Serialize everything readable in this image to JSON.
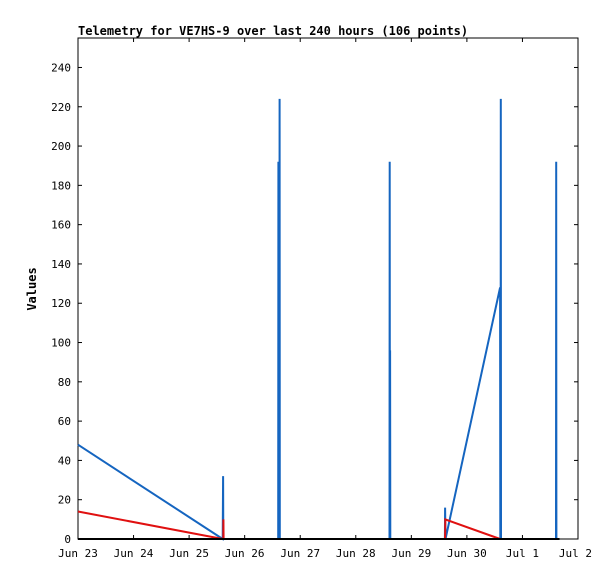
{
  "chart_data": {
    "type": "line",
    "title": "Telemetry for VE7HS-9 over last 240 hours (106 points)",
    "xlabel": "",
    "ylabel": "Values",
    "xlim": [
      "2025-06-23",
      "2025-07-02"
    ],
    "ylim": [
      0,
      255
    ],
    "x_ticks": [
      "Jun 23",
      "Jun 24",
      "Jun 25",
      "Jun 26",
      "Jun 27",
      "Jun 28",
      "Jun 29",
      "Jun 30",
      "Jul 1",
      "Jul 2"
    ],
    "y_ticks": [
      0,
      20,
      40,
      60,
      80,
      100,
      120,
      140,
      160,
      180,
      200,
      220,
      240
    ],
    "grid": false,
    "series": [
      {
        "color": "#1565c0",
        "points": [
          {
            "x": "2025-06-23T00:00",
            "y": 48
          },
          {
            "x": "2025-06-25T14:30",
            "y": 0
          },
          {
            "x": "2025-06-25T14:40",
            "y": 32
          },
          {
            "x": "2025-06-25T14:45",
            "y": 0
          },
          {
            "x": "2025-06-26T14:30",
            "y": 0
          },
          {
            "x": "2025-06-26T14:35",
            "y": 192
          },
          {
            "x": "2025-06-26T14:40",
            "y": 0
          },
          {
            "x": "2025-06-26T15:00",
            "y": 0
          },
          {
            "x": "2025-06-26T15:05",
            "y": 224
          },
          {
            "x": "2025-06-26T15:10",
            "y": 0
          },
          {
            "x": "2025-06-28T14:35",
            "y": 0
          },
          {
            "x": "2025-06-28T14:40",
            "y": 192
          },
          {
            "x": "2025-06-28T14:45",
            "y": 0
          },
          {
            "x": "2025-06-28T14:50",
            "y": 96
          },
          {
            "x": "2025-06-28T14:55",
            "y": 0
          },
          {
            "x": "2025-06-29T14:30",
            "y": 0
          },
          {
            "x": "2025-06-29T14:35",
            "y": 16
          },
          {
            "x": "2025-06-29T14:45",
            "y": 0
          },
          {
            "x": "2025-06-30T14:20",
            "y": 128
          },
          {
            "x": "2025-06-30T14:25",
            "y": 0
          },
          {
            "x": "2025-06-30T14:35",
            "y": 0
          },
          {
            "x": "2025-06-30T14:40",
            "y": 224
          },
          {
            "x": "2025-06-30T14:45",
            "y": 0
          },
          {
            "x": "2025-07-01T14:30",
            "y": 0
          },
          {
            "x": "2025-07-01T14:35",
            "y": 192
          },
          {
            "x": "2025-07-01T14:40",
            "y": 0
          }
        ]
      },
      {
        "color": "#e01010",
        "points": [
          {
            "x": "2025-06-23T00:00",
            "y": 14
          },
          {
            "x": "2025-06-25T14:30",
            "y": 0
          },
          {
            "x": "2025-06-25T14:45",
            "y": 0
          },
          {
            "x": "2025-06-25T14:50",
            "y": 10
          },
          {
            "x": "2025-06-25T14:55",
            "y": 0
          },
          {
            "x": "2025-06-29T14:35",
            "y": 0
          },
          {
            "x": "2025-06-29T14:40",
            "y": 10
          },
          {
            "x": "2025-06-30T14:20",
            "y": 0
          }
        ]
      },
      {
        "color": "#000000",
        "points": [
          {
            "x": "2025-06-23T00:00",
            "y": 0
          },
          {
            "x": "2025-07-01T16:00",
            "y": 0
          }
        ]
      }
    ]
  }
}
